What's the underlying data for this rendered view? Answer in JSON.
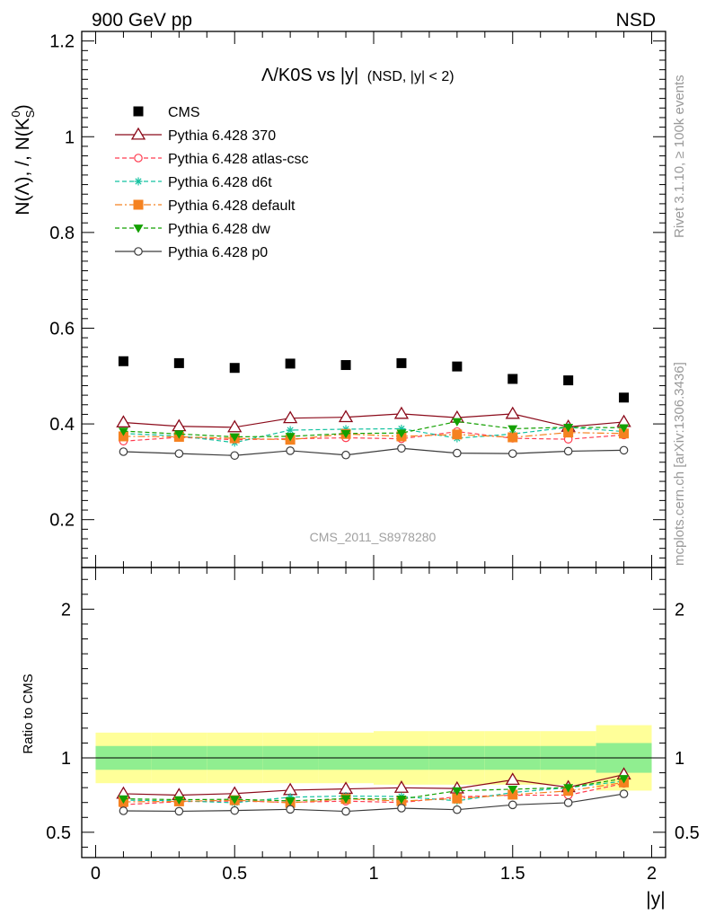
{
  "header": {
    "energy_label": "900 GeV pp",
    "process_label": "NSD"
  },
  "plot_title": {
    "main": "Λ/K0S vs |y|",
    "sub": "(NSD, |y| < 2)"
  },
  "side_labels": {
    "rivet": "Rivet 3.1.10, ≥ 100k events",
    "mcplots": "mcplots.cern.ch [arXiv:1306.3436]"
  },
  "watermark": "CMS_2011_S8978280",
  "chart_data": {
    "type": "scatter",
    "title": "Λ/K0S vs |y|",
    "xlabel": "|y|",
    "ylabel": "N(Λ), /, N(K_S^0)",
    "xlim": [
      -0.05,
      2.05
    ],
    "ylim": [
      0.1,
      1.22
    ],
    "x_ticks": [
      0,
      0.5,
      1,
      1.5,
      2
    ],
    "x_tick_labels": [
      "0",
      "0.5",
      "1",
      "1.5",
      "2"
    ],
    "y_ticks": [
      0.2,
      0.4,
      0.6,
      0.8,
      1.0,
      1.2
    ],
    "y_tick_labels": [
      "0.2",
      "0.4",
      "0.6",
      "0.8",
      "1",
      "1.2"
    ],
    "legend_position": "top-left",
    "x": [
      0.1,
      0.3,
      0.5,
      0.7,
      0.9,
      1.1,
      1.3,
      1.5,
      1.7,
      1.9
    ],
    "series": [
      {
        "name": "CMS",
        "color": "#000000",
        "marker": "filled-square",
        "line": "none",
        "values": [
          0.531,
          0.527,
          0.517,
          0.526,
          0.523,
          0.527,
          0.52,
          0.494,
          0.491,
          0.455
        ]
      },
      {
        "name": "Pythia 6.428 370",
        "color": "#8b0a1a",
        "marker": "open-triangle",
        "line": "solid",
        "values": [
          0.403,
          0.395,
          0.393,
          0.412,
          0.414,
          0.421,
          0.413,
          0.421,
          0.394,
          0.404
        ]
      },
      {
        "name": "Pythia 6.428 atlas-csc",
        "color": "#ff3c50",
        "marker": "open-circle",
        "line": "dashed",
        "values": [
          0.364,
          0.372,
          0.367,
          0.369,
          0.371,
          0.369,
          0.384,
          0.37,
          0.368,
          0.377
        ]
      },
      {
        "name": "Pythia 6.428 d6t",
        "color": "#13c2a0",
        "marker": "asterisk",
        "line": "dashed",
        "values": [
          0.38,
          0.375,
          0.361,
          0.387,
          0.389,
          0.39,
          0.37,
          0.379,
          0.393,
          0.384
        ]
      },
      {
        "name": "Pythia 6.428 default",
        "color": "#f58220",
        "marker": "filled-square",
        "line": "dashdot",
        "values": [
          0.374,
          0.373,
          0.37,
          0.367,
          0.379,
          0.374,
          0.378,
          0.372,
          0.382,
          0.38
        ]
      },
      {
        "name": "Pythia 6.428 dw",
        "color": "#13a000",
        "marker": "filled-triangle-down",
        "line": "dashed",
        "values": [
          0.385,
          0.379,
          0.373,
          0.374,
          0.38,
          0.381,
          0.405,
          0.39,
          0.393,
          0.392
        ]
      },
      {
        "name": "Pythia 6.428 p0",
        "color": "#3c3c3c",
        "marker": "open-circle",
        "line": "solid",
        "values": [
          0.342,
          0.338,
          0.334,
          0.344,
          0.335,
          0.349,
          0.339,
          0.338,
          0.343,
          0.345
        ]
      }
    ],
    "ratio_panel": {
      "ylabel": "Ratio to CMS",
      "ylim": [
        0.33,
        2.28
      ],
      "y_ticks": [
        0.5,
        1,
        2
      ],
      "y_tick_labels": [
        "0.5",
        "1",
        "2"
      ],
      "band_bins": [
        {
          "lo": 0.0,
          "hi": 0.2,
          "stat": [
            0.92,
            1.08
          ],
          "total": [
            0.83,
            1.17
          ]
        },
        {
          "lo": 0.2,
          "hi": 0.4,
          "stat": [
            0.92,
            1.08
          ],
          "total": [
            0.83,
            1.17
          ]
        },
        {
          "lo": 0.4,
          "hi": 0.6,
          "stat": [
            0.92,
            1.08
          ],
          "total": [
            0.83,
            1.17
          ]
        },
        {
          "lo": 0.6,
          "hi": 0.8,
          "stat": [
            0.92,
            1.08
          ],
          "total": [
            0.83,
            1.17
          ]
        },
        {
          "lo": 0.8,
          "hi": 1.0,
          "stat": [
            0.92,
            1.08
          ],
          "total": [
            0.83,
            1.17
          ]
        },
        {
          "lo": 1.0,
          "hi": 1.2,
          "stat": [
            0.92,
            1.08
          ],
          "total": [
            0.82,
            1.18
          ]
        },
        {
          "lo": 1.2,
          "hi": 1.4,
          "stat": [
            0.92,
            1.08
          ],
          "total": [
            0.82,
            1.18
          ]
        },
        {
          "lo": 1.4,
          "hi": 1.6,
          "stat": [
            0.92,
            1.08
          ],
          "total": [
            0.82,
            1.18
          ]
        },
        {
          "lo": 1.6,
          "hi": 1.8,
          "stat": [
            0.92,
            1.08
          ],
          "total": [
            0.82,
            1.18
          ]
        },
        {
          "lo": 1.8,
          "hi": 2.0,
          "stat": [
            0.9,
            1.1
          ],
          "total": [
            0.78,
            1.22
          ]
        }
      ],
      "band_colors": {
        "stat": "#90ee90",
        "total": "#ffff99"
      }
    }
  }
}
